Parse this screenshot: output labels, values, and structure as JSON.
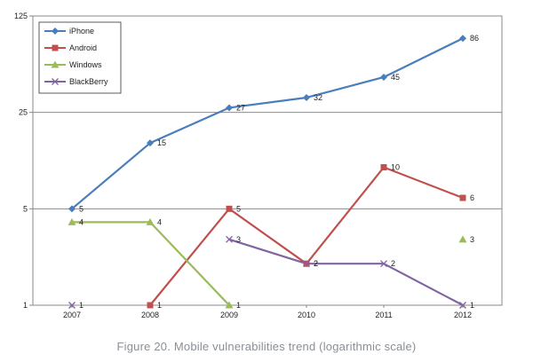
{
  "caption": "Figure 20. Mobile vulnerabilities trend (logarithmic scale)",
  "chart_data": {
    "type": "line",
    "x": [
      "2007",
      "2008",
      "2009",
      "2010",
      "2011",
      "2012"
    ],
    "yscale": "log",
    "ylim": [
      1,
      125
    ],
    "yticks": [
      1,
      5,
      25,
      125
    ],
    "grid": true,
    "legend": "top-left",
    "series": [
      {
        "name": "iPhone",
        "color": "#4a7ebb",
        "marker": "diamond",
        "values": [
          5,
          15,
          27,
          32,
          45,
          86
        ],
        "labels": [
          "5",
          "15",
          "27",
          "32",
          "45",
          "86"
        ]
      },
      {
        "name": "Android",
        "color": "#c0504d",
        "marker": "square",
        "values": [
          null,
          1,
          5,
          2,
          10,
          6
        ],
        "labels": [
          null,
          "1",
          "5",
          "2",
          "10",
          "6"
        ]
      },
      {
        "name": "Windows",
        "color": "#9bbb59",
        "marker": "triangle",
        "values": [
          4,
          4,
          1,
          null,
          null,
          3
        ],
        "labels": [
          "4",
          "4",
          "1",
          null,
          null,
          "3"
        ]
      },
      {
        "name": "BlackBerry",
        "color": "#8064a2",
        "marker": "x",
        "values": [
          1,
          null,
          3,
          2,
          2,
          1
        ],
        "labels": [
          "1",
          null,
          "3",
          "2",
          "2",
          "1"
        ]
      }
    ]
  }
}
